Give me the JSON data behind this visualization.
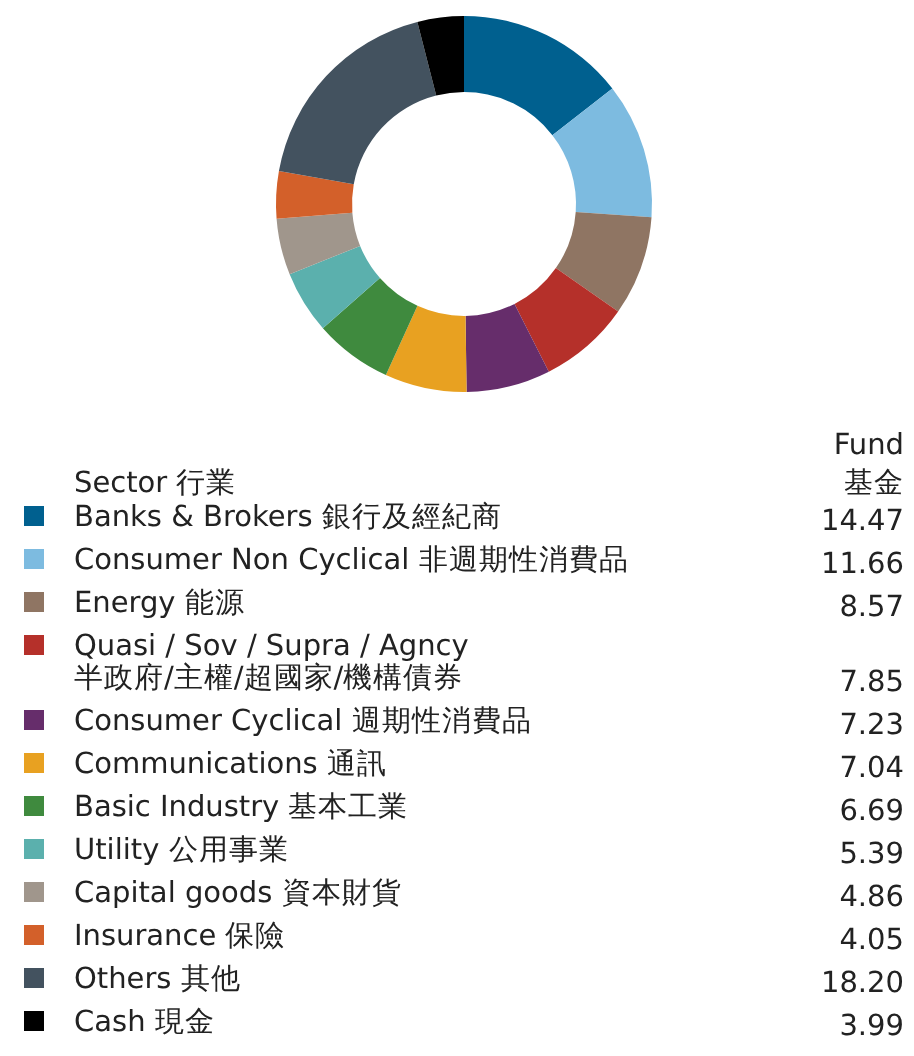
{
  "chart_data": {
    "type": "donut",
    "legend": "bottom",
    "value_labels": [
      "14.47",
      "11.66",
      "8.57",
      "7.85",
      "7.23",
      "7.04",
      "6.69",
      "5.39",
      "4.86",
      "4.05",
      "18.20",
      "3.99"
    ],
    "legend_title": "Sector 行業",
    "annotations": [
      "Fund",
      "基金"
    ],
    "categories": [
      "Banks & Brokers 銀行及經紀商",
      "Consumer Non Cyclical 非週期性消費品",
      "Energy 能源",
      "Quasi / Sov / Supra / Agncy 半政府/主權/超國家/機構債券",
      "Consumer Cyclical 週期性消費品",
      "Communications 通訊",
      "Basic Industry 基本工業",
      "Utility 公用事業",
      "Capital goods 資本財貨",
      "Insurance 保險",
      "Others 其他",
      "Cash 現金"
    ],
    "values": [
      14.47,
      11.66,
      8.57,
      7.85,
      7.23,
      7.04,
      6.69,
      5.39,
      4.86,
      4.05,
      18.2,
      3.99
    ],
    "colors": [
      "#00608f",
      "#7dbbe0",
      "#8f7563",
      "#b5302a",
      "#662d6b",
      "#e8a121",
      "#3f8a3e",
      "#5bb0ad",
      "#a0968c",
      "#d3602a",
      "#43525f",
      "#000000"
    ]
  }
}
